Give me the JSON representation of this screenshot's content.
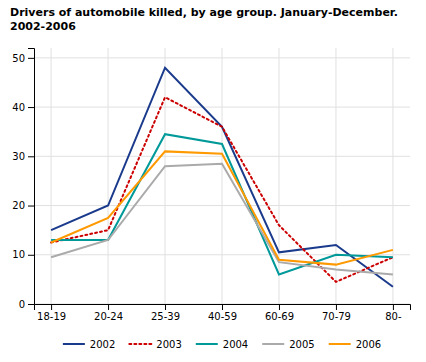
{
  "chart_data": {
    "type": "line",
    "title": "Drivers of automobile killed, by age group. January-December.",
    "subtitle": "2002-2006",
    "categories": [
      "18-19",
      "20-24",
      "25-39",
      "40-59",
      "60-69",
      "70-79",
      "80-"
    ],
    "series": [
      {
        "name": "2002",
        "color": "#1a3a8c",
        "line_style": "solid",
        "values": [
          15,
          20,
          48,
          36,
          10.5,
          12,
          3.5
        ]
      },
      {
        "name": "2003",
        "color": "#cc0000",
        "line_style": "dotted",
        "values": [
          12.5,
          15,
          42,
          36,
          16,
          4.5,
          9.5
        ]
      },
      {
        "name": "2004",
        "color": "#009999",
        "line_style": "solid",
        "values": [
          13,
          13,
          34.5,
          32.5,
          6,
          10,
          9.5
        ]
      },
      {
        "name": "2005",
        "color": "#aaaaaa",
        "line_style": "solid",
        "values": [
          9.5,
          13,
          28,
          28.5,
          8.5,
          7,
          6
        ]
      },
      {
        "name": "2006",
        "color": "#ff9900",
        "line_style": "solid",
        "values": [
          12.5,
          17.5,
          31,
          30.5,
          9,
          8,
          11
        ]
      }
    ],
    "ylim": [
      0,
      52
    ],
    "yticks": [
      0,
      10,
      20,
      30,
      40,
      50
    ],
    "grid": true,
    "legend": "bottom"
  }
}
